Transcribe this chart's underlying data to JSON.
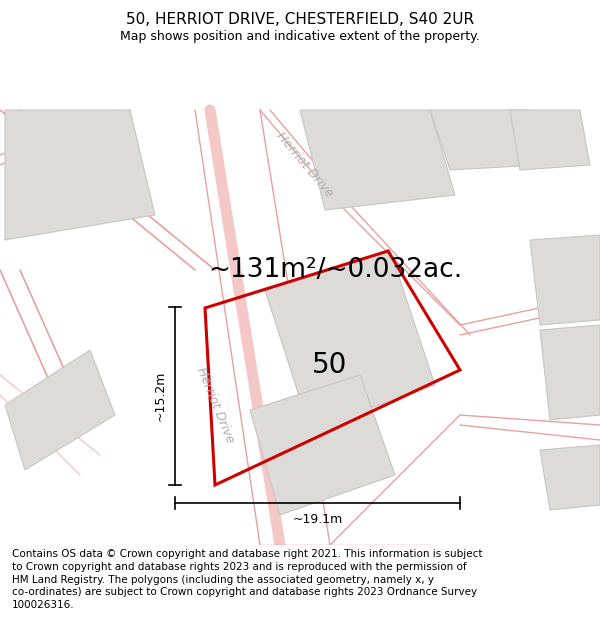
{
  "title": "50, HERRIOT DRIVE, CHESTERFIELD, S40 2UR",
  "subtitle": "Map shows position and indicative extent of the property.",
  "area_text": "~131m²/~0.032ac.",
  "property_label": "50",
  "dim_width": "~19.1m",
  "dim_height": "~15.2m",
  "street_label_top": "Herriot Drive",
  "street_label_left": "Herriot Drive",
  "footer_lines": [
    "Contains OS data © Crown copyright and database right 2021. This information is subject",
    "to Crown copyright and database rights 2023 and is reproduced with the permission of",
    "HM Land Registry. The polygons (including the associated geometry, namely x, y",
    "co-ordinates) are subject to Crown copyright and database rights 2023 Ordnance Survey",
    "100026316."
  ],
  "bg_color": "#f2f0ee",
  "road_color_light": "#f5c8c8",
  "road_color_med": "#e8a0a0",
  "block_fill": "#dddbd8",
  "block_edge": "#c8c6c3",
  "property_edge": "#cc0000",
  "title_fontsize": 11,
  "subtitle_fontsize": 9,
  "area_fontsize": 19,
  "label_fontsize": 20,
  "dim_fontsize": 9,
  "street_fontsize": 9,
  "footer_fontsize": 7.5,
  "figsize": [
    6.0,
    6.25
  ],
  "dpi": 100
}
